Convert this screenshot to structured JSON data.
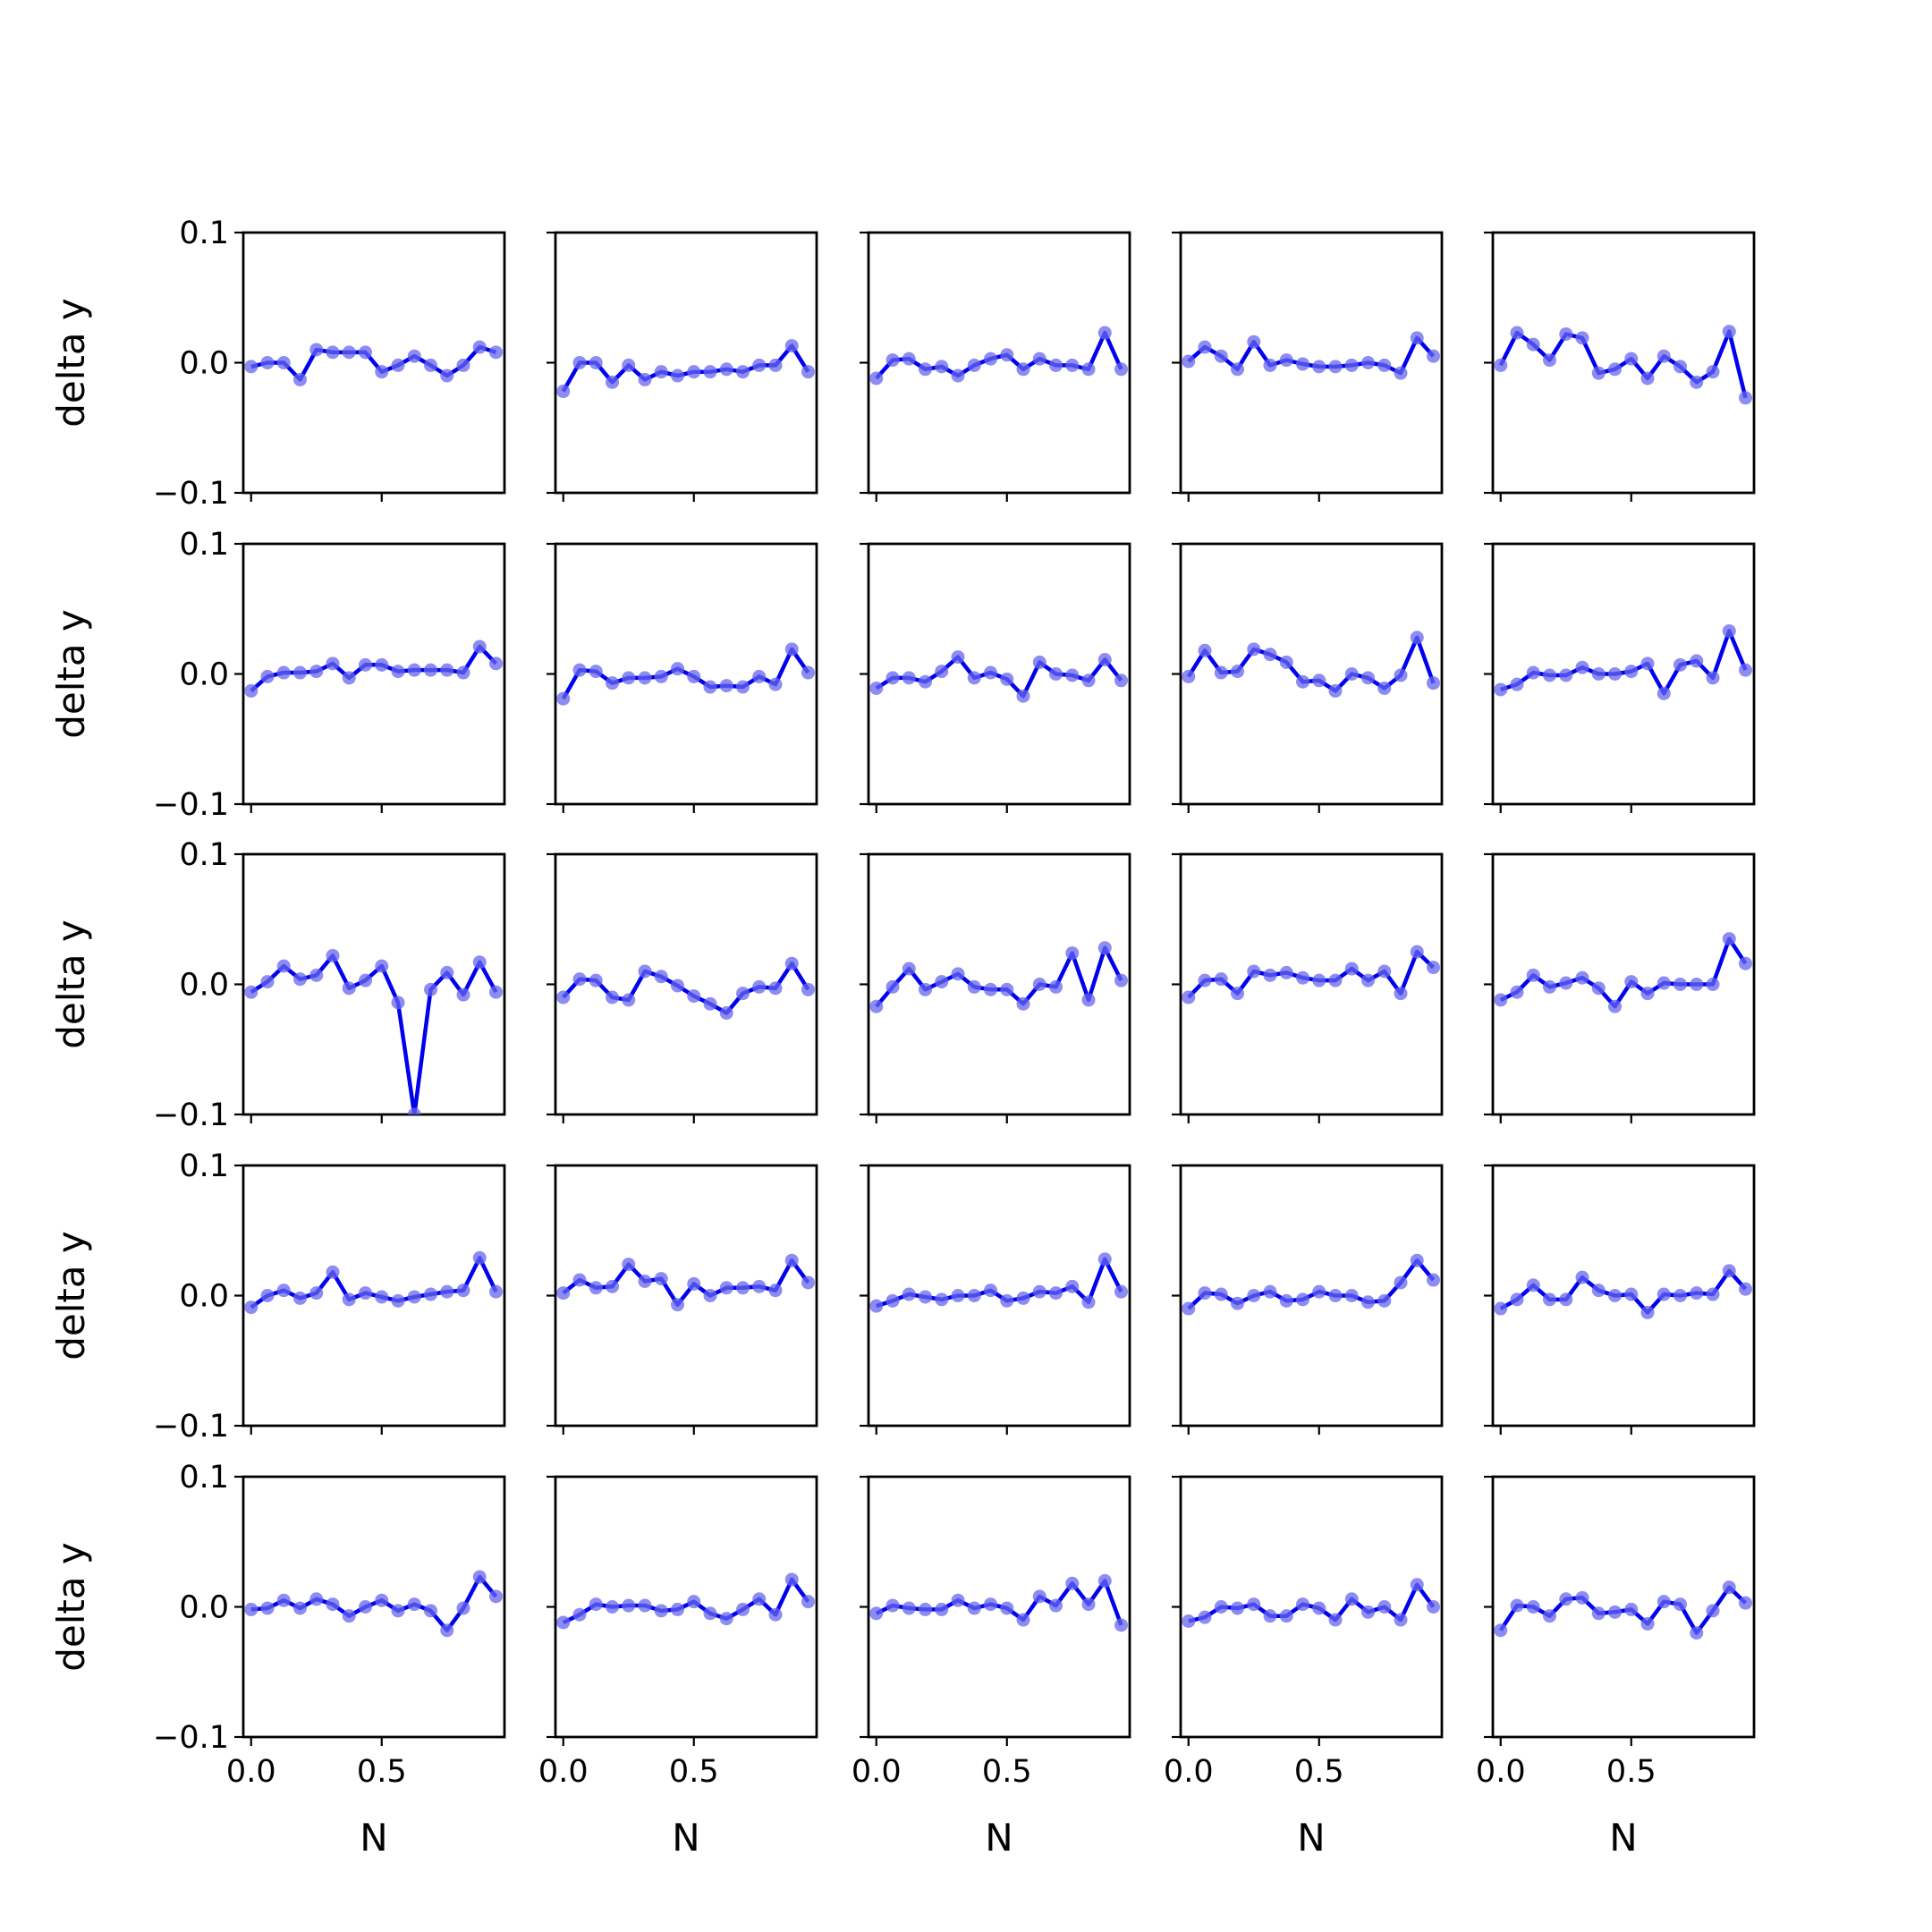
{
  "chart_data": {
    "type": "line",
    "layout": "5x5 grid of subplots, shared axes",
    "xlabel": "N",
    "ylabel": "delta y",
    "ylim": [
      -0.1,
      0.1
    ],
    "yticks": [
      0.1,
      0.0,
      -0.1
    ],
    "ytick_labels": [
      "0.1",
      "0.0",
      "−0.1"
    ],
    "xticks": [
      0.0,
      0.5
    ],
    "xtick_labels": [
      "0.0",
      "0.5"
    ],
    "x": [
      0.0,
      0.0625,
      0.125,
      0.1875,
      0.25,
      0.3125,
      0.375,
      0.4375,
      0.5,
      0.5625,
      0.625,
      0.6875,
      0.75,
      0.8125,
      0.875,
      0.9375
    ],
    "xlim": [
      -0.03,
      0.97
    ],
    "line_color": "#0000ee",
    "marker_color": "#6666ee",
    "panels": [
      {
        "row": 0,
        "col": 0,
        "values": [
          -0.003,
          0.0,
          0.0,
          -0.013,
          0.01,
          0.008,
          0.008,
          0.008,
          -0.007,
          -0.002,
          0.005,
          -0.002,
          -0.01,
          -0.002,
          0.012,
          0.008
        ]
      },
      {
        "row": 0,
        "col": 1,
        "values": [
          -0.022,
          0.0,
          0.0,
          -0.015,
          -0.002,
          -0.013,
          -0.007,
          -0.01,
          -0.007,
          -0.007,
          -0.005,
          -0.007,
          -0.002,
          -0.002,
          0.013,
          -0.007
        ]
      },
      {
        "row": 0,
        "col": 2,
        "values": [
          -0.012,
          0.002,
          0.003,
          -0.005,
          -0.003,
          -0.01,
          -0.002,
          0.003,
          0.006,
          -0.005,
          0.003,
          -0.002,
          -0.002,
          -0.005,
          0.023,
          -0.005
        ]
      },
      {
        "row": 0,
        "col": 3,
        "values": [
          0.001,
          0.012,
          0.005,
          -0.005,
          0.016,
          -0.002,
          0.002,
          -0.001,
          -0.003,
          -0.003,
          -0.002,
          0.0,
          -0.002,
          -0.008,
          0.019,
          0.005
        ]
      },
      {
        "row": 0,
        "col": 4,
        "values": [
          -0.002,
          0.023,
          0.014,
          0.002,
          0.022,
          0.019,
          -0.008,
          -0.005,
          0.003,
          -0.012,
          0.005,
          -0.003,
          -0.015,
          -0.007,
          0.024,
          -0.027
        ]
      },
      {
        "row": 1,
        "col": 0,
        "values": [
          -0.013,
          -0.002,
          0.001,
          0.001,
          0.002,
          0.008,
          -0.003,
          0.007,
          0.007,
          0.002,
          0.003,
          0.003,
          0.003,
          0.001,
          0.021,
          0.008
        ]
      },
      {
        "row": 1,
        "col": 1,
        "values": [
          -0.019,
          0.003,
          0.002,
          -0.007,
          -0.003,
          -0.003,
          -0.002,
          0.004,
          -0.002,
          -0.01,
          -0.009,
          -0.01,
          -0.002,
          -0.008,
          0.019,
          0.001
        ]
      },
      {
        "row": 1,
        "col": 2,
        "values": [
          -0.011,
          -0.003,
          -0.003,
          -0.006,
          0.002,
          0.013,
          -0.003,
          0.001,
          -0.004,
          -0.017,
          0.009,
          0.0,
          -0.001,
          -0.005,
          0.011,
          -0.005
        ]
      },
      {
        "row": 1,
        "col": 3,
        "values": [
          -0.002,
          0.018,
          0.001,
          0.002,
          0.019,
          0.015,
          0.009,
          -0.006,
          -0.005,
          -0.013,
          0.0,
          -0.003,
          -0.011,
          -0.001,
          0.028,
          -0.007
        ]
      },
      {
        "row": 1,
        "col": 4,
        "values": [
          -0.012,
          -0.008,
          0.001,
          -0.001,
          -0.001,
          0.005,
          0.0,
          0.0,
          0.002,
          0.008,
          -0.015,
          0.007,
          0.01,
          -0.003,
          0.033,
          0.003
        ]
      },
      {
        "row": 2,
        "col": 0,
        "values": [
          -0.006,
          0.002,
          0.014,
          0.004,
          0.007,
          0.022,
          -0.003,
          0.003,
          0.014,
          -0.014,
          -0.1,
          -0.004,
          0.009,
          -0.008,
          0.017,
          -0.006
        ]
      },
      {
        "row": 2,
        "col": 1,
        "values": [
          -0.01,
          0.004,
          0.003,
          -0.01,
          -0.012,
          0.01,
          0.006,
          -0.001,
          -0.009,
          -0.015,
          -0.022,
          -0.007,
          -0.002,
          -0.003,
          0.016,
          -0.004
        ]
      },
      {
        "row": 2,
        "col": 2,
        "values": [
          -0.017,
          -0.002,
          0.012,
          -0.004,
          0.002,
          0.008,
          -0.002,
          -0.004,
          -0.004,
          -0.015,
          0.0,
          -0.002,
          0.024,
          -0.012,
          0.028,
          0.003
        ]
      },
      {
        "row": 2,
        "col": 3,
        "values": [
          -0.01,
          0.003,
          0.004,
          -0.007,
          0.01,
          0.007,
          0.009,
          0.005,
          0.003,
          0.003,
          0.012,
          0.003,
          0.01,
          -0.007,
          0.025,
          0.013
        ]
      },
      {
        "row": 2,
        "col": 4,
        "values": [
          -0.012,
          -0.006,
          0.007,
          -0.002,
          0.001,
          0.005,
          -0.003,
          -0.017,
          0.002,
          -0.007,
          0.001,
          0.0,
          0.0,
          0.0,
          0.035,
          0.016
        ]
      },
      {
        "row": 3,
        "col": 0,
        "values": [
          -0.009,
          0.0,
          0.004,
          -0.002,
          0.002,
          0.018,
          -0.003,
          0.002,
          -0.001,
          -0.004,
          -0.001,
          0.001,
          0.003,
          0.004,
          0.029,
          0.003
        ]
      },
      {
        "row": 3,
        "col": 1,
        "values": [
          0.002,
          0.012,
          0.006,
          0.007,
          0.024,
          0.011,
          0.013,
          -0.007,
          0.009,
          0.0,
          0.006,
          0.006,
          0.007,
          0.004,
          0.027,
          0.01
        ]
      },
      {
        "row": 3,
        "col": 2,
        "values": [
          -0.008,
          -0.004,
          0.001,
          -0.001,
          -0.003,
          0.0,
          0.0,
          0.004,
          -0.004,
          -0.002,
          0.003,
          0.002,
          0.007,
          -0.005,
          0.028,
          0.003
        ]
      },
      {
        "row": 3,
        "col": 3,
        "values": [
          -0.01,
          0.002,
          0.001,
          -0.006,
          0.0,
          0.003,
          -0.004,
          -0.003,
          0.003,
          0.0,
          0.0,
          -0.005,
          -0.004,
          0.01,
          0.027,
          0.012
        ]
      },
      {
        "row": 3,
        "col": 4,
        "values": [
          -0.01,
          -0.003,
          0.008,
          -0.003,
          -0.003,
          0.014,
          0.004,
          0.0,
          0.001,
          -0.013,
          0.001,
          0.0,
          0.002,
          0.001,
          0.019,
          0.005
        ]
      },
      {
        "row": 4,
        "col": 0,
        "values": [
          -0.002,
          -0.001,
          0.005,
          -0.001,
          0.006,
          0.002,
          -0.007,
          0.0,
          0.005,
          -0.003,
          0.002,
          -0.003,
          -0.018,
          -0.001,
          0.023,
          0.008
        ]
      },
      {
        "row": 4,
        "col": 1,
        "values": [
          -0.012,
          -0.006,
          0.002,
          0.0,
          0.001,
          0.001,
          -0.003,
          -0.002,
          0.004,
          -0.005,
          -0.009,
          -0.002,
          0.006,
          -0.006,
          0.021,
          0.004
        ]
      },
      {
        "row": 4,
        "col": 2,
        "values": [
          -0.005,
          0.001,
          -0.001,
          -0.002,
          -0.002,
          0.005,
          -0.001,
          0.002,
          -0.001,
          -0.01,
          0.008,
          0.001,
          0.018,
          0.002,
          0.02,
          -0.014
        ]
      },
      {
        "row": 4,
        "col": 3,
        "values": [
          -0.011,
          -0.008,
          0.0,
          -0.001,
          0.002,
          -0.007,
          -0.007,
          0.002,
          -0.001,
          -0.01,
          0.006,
          -0.004,
          0.0,
          -0.01,
          0.017,
          0.0
        ]
      },
      {
        "row": 4,
        "col": 4,
        "values": [
          -0.018,
          0.001,
          0.0,
          -0.007,
          0.006,
          0.007,
          -0.005,
          -0.004,
          -0.002,
          -0.013,
          0.004,
          0.002,
          -0.02,
          -0.003,
          0.015,
          0.003
        ]
      }
    ]
  }
}
